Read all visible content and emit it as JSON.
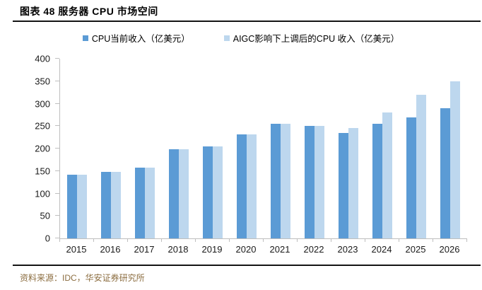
{
  "figure": {
    "title": "图表 48 服务器 CPU 市场空间",
    "source": "资料来源：IDC，华安证券研究所"
  },
  "chart_data": {
    "type": "bar",
    "title": "服务器 CPU 市场空间",
    "categories": [
      "2015",
      "2016",
      "2017",
      "2018",
      "2019",
      "2020",
      "2021",
      "2022",
      "2023",
      "2024",
      "2025",
      "2026"
    ],
    "series": [
      {
        "name": "CPU当前收入（亿美元）",
        "color": "#5B9BD5",
        "values": [
          142,
          148,
          158,
          199,
          205,
          232,
          255,
          250,
          235,
          255,
          270,
          290
        ]
      },
      {
        "name": "AIGC影响下上调后的CPU 收入（亿美元）",
        "color": "#BDD7EE",
        "values": [
          142,
          148,
          158,
          199,
          205,
          232,
          255,
          250,
          245,
          280,
          320,
          350
        ]
      }
    ],
    "xlabel": "",
    "ylabel": "",
    "ylim": [
      0,
      400
    ],
    "y_ticks": [
      0,
      50,
      100,
      150,
      200,
      250,
      300,
      350,
      400
    ],
    "grid": false,
    "legend_position": "top",
    "colors": {
      "axis": "#BFBFBF",
      "tick_label": "#1a1a1a",
      "source_text": "#8C6E41",
      "divider": "#141414"
    }
  }
}
